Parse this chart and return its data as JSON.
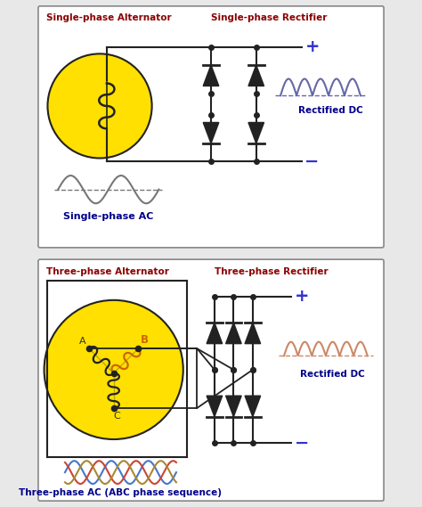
{
  "bg_color": "#e8e8e8",
  "panel_bg": "#ffffff",
  "border_color": "#888888",
  "dark_red": "#8B0000",
  "blue_label": "#00008B",
  "orange": "#CC6600",
  "yellow_fill": "#FFE000",
  "black": "#222222",
  "title1": "Single-phase Alternator",
  "title2": "Single-phase Rectifier",
  "label1": "Single-phase AC",
  "label2": "Rectified DC",
  "title3": "Three-phase Alternator",
  "title4": "Three-phase Rectifier",
  "label3": "Three-phase AC (ABC phase sequence)",
  "label4": "Rectified DC"
}
